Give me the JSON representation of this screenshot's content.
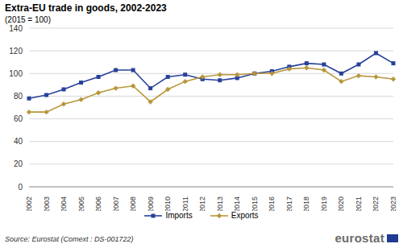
{
  "chart_data": {
    "type": "line",
    "title": "Extra-EU trade in goods, 2002-2023",
    "subtitle": "(2015 = 100)",
    "categories": [
      "2002",
      "2003",
      "2004",
      "2005",
      "2006",
      "2007",
      "2008",
      "2009",
      "2010",
      "2011",
      "2012",
      "2013",
      "2014",
      "2015",
      "2016",
      "2017",
      "2018",
      "2019",
      "2020",
      "2021",
      "2022",
      "2023"
    ],
    "series": [
      {
        "name": "Imports",
        "color": "#28419a",
        "marker": "square",
        "values": [
          78,
          81,
          86,
          92,
          97,
          103,
          103,
          87,
          97,
          99,
          95,
          94,
          96,
          100,
          102,
          106,
          109,
          108,
          100,
          108,
          118,
          109
        ]
      },
      {
        "name": "Exports",
        "color": "#b8973b",
        "marker": "diamond",
        "values": [
          66,
          66,
          73,
          77,
          83,
          87,
          89,
          75,
          86,
          93,
          97,
          99,
          99,
          100,
          100,
          104,
          105,
          103,
          93,
          98,
          97,
          95
        ]
      }
    ],
    "ylim": [
      0,
      140
    ],
    "yticks": [
      0,
      20,
      40,
      60,
      80,
      100,
      120,
      140
    ],
    "grid": true,
    "legend": "bottom",
    "source": "Source: Eurostat (Comext : DS-001722)",
    "logo": "eurostat"
  }
}
